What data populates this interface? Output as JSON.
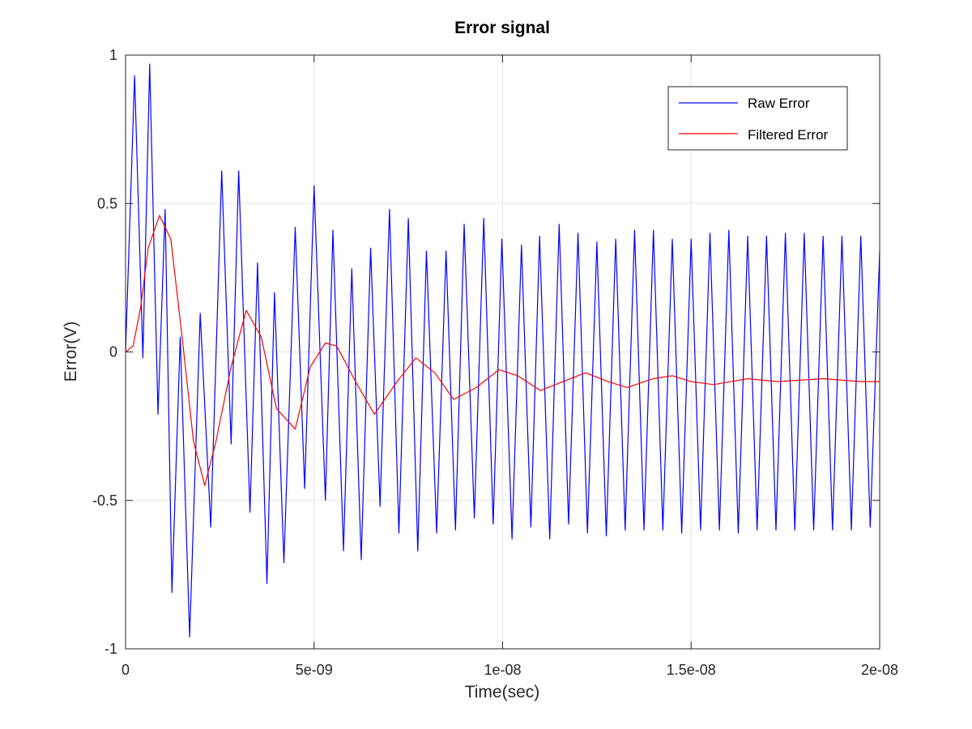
{
  "chart_data": {
    "type": "line",
    "title": "Error signal",
    "xlabel": "Time(sec)",
    "ylabel": "Error(V)",
    "xlim": [
      0,
      2e-08
    ],
    "ylim": [
      -1,
      1
    ],
    "grid": true,
    "legend_position": "top-right",
    "x_ticks": [
      {
        "value": 0,
        "label": "0"
      },
      {
        "value": 5e-09,
        "label": "5e-09"
      },
      {
        "value": 1e-08,
        "label": "1e-08"
      },
      {
        "value": 1.5e-08,
        "label": "1.5e-08"
      },
      {
        "value": 2e-08,
        "label": "2e-08"
      }
    ],
    "y_ticks": [
      {
        "value": 1,
        "label": "1"
      },
      {
        "value": 0.5,
        "label": "0.5"
      },
      {
        "value": 0,
        "label": "0"
      },
      {
        "value": -0.5,
        "label": "-0.5"
      },
      {
        "value": -1,
        "label": "-1"
      }
    ],
    "series": [
      {
        "name": "Raw Error",
        "color": "#0000ff",
        "x": [
          0,
          2.4e-10,
          4.6e-10,
          6.4e-10,
          8.6e-10,
          1.05e-09,
          1.23e-09,
          1.45e-09,
          1.7e-09,
          1.98e-09,
          2.26e-09,
          2.55e-09,
          2.8e-09,
          3e-09,
          3.3e-09,
          3.5e-09,
          3.75e-09,
          3.95e-09,
          4.2e-09,
          4.5e-09,
          4.75e-09,
          5e-09,
          5.3e-09,
          5.5e-09,
          5.78e-09,
          6e-09,
          6.25e-09,
          6.5e-09,
          6.75e-09,
          7e-09,
          7.25e-09,
          7.5e-09,
          7.75e-09,
          7.98e-09,
          8.25e-09,
          8.5e-09,
          8.75e-09,
          8.98e-09,
          9.25e-09,
          9.5e-09,
          9.75e-09,
          9.98e-09,
          1.025e-08,
          1.05e-08,
          1.075e-08,
          1.098e-08,
          1.125e-08,
          1.15e-08,
          1.175e-08,
          1.2e-08,
          1.225e-08,
          1.25e-08,
          1.275e-08,
          1.3e-08,
          1.325e-08,
          1.35e-08,
          1.375e-08,
          1.4e-08,
          1.425e-08,
          1.45e-08,
          1.475e-08,
          1.5e-08,
          1.525e-08,
          1.55e-08,
          1.575e-08,
          1.6e-08,
          1.625e-08,
          1.65e-08,
          1.675e-08,
          1.7e-08,
          1.725e-08,
          1.75e-08,
          1.775e-08,
          1.8e-08,
          1.825e-08,
          1.85e-08,
          1.875e-08,
          1.9e-08,
          1.925e-08,
          1.95e-08,
          1.975e-08,
          2e-08
        ],
        "y": [
          0,
          0.93,
          -0.02,
          0.97,
          -0.21,
          0.48,
          -0.81,
          0.05,
          -0.96,
          0.13,
          -0.59,
          0.61,
          -0.31,
          0.61,
          -0.54,
          0.3,
          -0.78,
          0.2,
          -0.71,
          0.42,
          -0.46,
          0.56,
          -0.5,
          0.41,
          -0.67,
          0.28,
          -0.7,
          0.35,
          -0.52,
          0.48,
          -0.61,
          0.45,
          -0.67,
          0.34,
          -0.61,
          0.34,
          -0.6,
          0.43,
          -0.56,
          0.45,
          -0.58,
          0.38,
          -0.63,
          0.36,
          -0.59,
          0.39,
          -0.63,
          0.43,
          -0.58,
          0.4,
          -0.61,
          0.37,
          -0.62,
          0.38,
          -0.6,
          0.41,
          -0.6,
          0.41,
          -0.6,
          0.38,
          -0.61,
          0.38,
          -0.6,
          0.4,
          -0.6,
          0.41,
          -0.61,
          0.39,
          -0.6,
          0.39,
          -0.6,
          0.4,
          -0.6,
          0.4,
          -0.6,
          0.39,
          -0.6,
          0.39,
          -0.6,
          0.39,
          -0.59,
          0.34
        ]
      },
      {
        "name": "Filtered Error",
        "color": "#ff0000",
        "x": [
          0,
          2e-10,
          4e-10,
          6e-10,
          9e-10,
          1.2e-09,
          1.5e-09,
          1.8e-09,
          2.1e-09,
          2.4e-09,
          2.8e-09,
          3.2e-09,
          3.6e-09,
          4e-09,
          4.5e-09,
          4.9e-09,
          5.3e-09,
          5.6e-09,
          6.1e-09,
          6.6e-09,
          7.2e-09,
          7.7e-09,
          8.2e-09,
          8.7e-09,
          9.3e-09,
          9.9e-09,
          1.04e-08,
          1.1e-08,
          1.16e-08,
          1.22e-08,
          1.28e-08,
          1.33e-08,
          1.4e-08,
          1.45e-08,
          1.5e-08,
          1.56e-08,
          1.65e-08,
          1.73e-08,
          1.85e-08,
          1.95e-08,
          2e-08
        ],
        "y": [
          0,
          0.02,
          0.15,
          0.35,
          0.46,
          0.38,
          0.05,
          -0.3,
          -0.45,
          -0.3,
          -0.05,
          0.14,
          0.05,
          -0.19,
          -0.26,
          -0.05,
          0.03,
          0.02,
          -0.1,
          -0.21,
          -0.1,
          -0.02,
          -0.07,
          -0.16,
          -0.12,
          -0.06,
          -0.08,
          -0.13,
          -0.1,
          -0.07,
          -0.1,
          -0.12,
          -0.09,
          -0.08,
          -0.1,
          -0.11,
          -0.09,
          -0.1,
          -0.09,
          -0.1,
          -0.1
        ]
      }
    ]
  }
}
